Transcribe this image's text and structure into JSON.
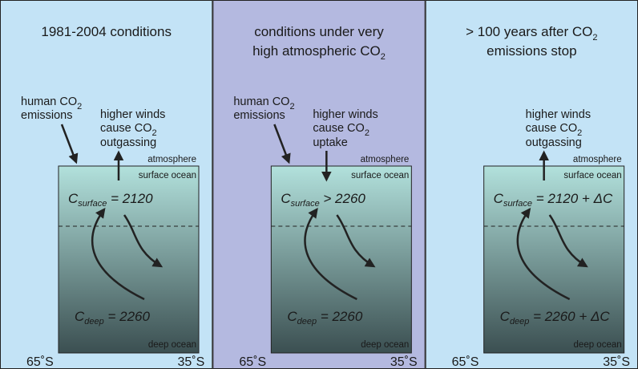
{
  "panels": [
    {
      "title": [
        "1981-2004 conditions"
      ],
      "emissions": {
        "pre": "human CO",
        "sub": "2",
        "line2": "emissions"
      },
      "winds": {
        "line1": "higher winds",
        "line2_pre": "cause CO",
        "line2_sub": "2",
        "line3": "outgassing",
        "direction": "up"
      },
      "atmosphere": "atmosphere",
      "surface_ocean": "surface ocean",
      "deep_ocean": "deep ocean",
      "c_surface": {
        "symbol": "C",
        "sub": "surface",
        "rel": " = ",
        "value": "2120"
      },
      "c_deep": {
        "symbol": "C",
        "sub": "deep",
        "rel": " = ",
        "value": "2260"
      },
      "lat_left": "65˚S",
      "lat_right": "35˚S"
    },
    {
      "title": [
        "conditions under very",
        "high atmospheric CO|2"
      ],
      "emissions": {
        "pre": "human CO",
        "sub": "2",
        "line2": "emissions"
      },
      "winds": {
        "line1": "higher winds",
        "line2_pre": "cause CO",
        "line2_sub": "2",
        "line3": "uptake",
        "direction": "down"
      },
      "atmosphere": "atmosphere",
      "surface_ocean": "surface ocean",
      "deep_ocean": "deep ocean",
      "c_surface": {
        "symbol": "C",
        "sub": "surface",
        "rel": " > ",
        "value": "2260"
      },
      "c_deep": {
        "symbol": "C",
        "sub": "deep",
        "rel": " = ",
        "value": "2260"
      },
      "lat_left": "65˚S",
      "lat_right": "35˚S"
    },
    {
      "title": [
        "> 100 years after CO|2",
        "emissions stop"
      ],
      "winds": {
        "line1": "higher winds",
        "line2_pre": "cause CO",
        "line2_sub": "2",
        "line3": "outgassing",
        "direction": "up"
      },
      "atmosphere": "atmosphere",
      "surface_ocean": "surface ocean",
      "deep_ocean": "deep ocean",
      "c_surface": {
        "symbol": "C",
        "sub": "surface",
        "rel": " = ",
        "value": "2120 + ΔC"
      },
      "c_deep": {
        "symbol": "C",
        "sub": "deep",
        "rel": " = ",
        "value": "2260 + ΔC"
      },
      "lat_left": "65˚S",
      "lat_right": "35˚S"
    }
  ],
  "colors": {
    "panel_light": "#c3e3f6",
    "panel_highlight": "#b4b9e0",
    "ocean_top": "#b2e1dc",
    "ocean_bottom": "#3b4f51",
    "stroke": "#222222"
  }
}
